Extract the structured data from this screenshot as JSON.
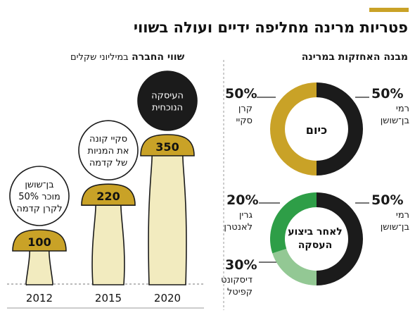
{
  "header": {
    "title": "פטריות מרינה מחליפה ידיים ועולה בשווי"
  },
  "sections": {
    "holdings_title": "מבנה האחזקות במרינה",
    "value_title_bold": "שווי החברה",
    "value_title_sub": "במיליוני שקלים"
  },
  "colors": {
    "accent": "#c9a227",
    "dark": "#1b1b1b",
    "gold": "#c9a227",
    "green": "#2e9e47",
    "light_green": "#93c894",
    "stem": "#f2ebbf"
  },
  "chart_data": [
    {
      "type": "pie",
      "title": "כיום",
      "slices": [
        {
          "name": "רמי בן־שושן",
          "percent": 50,
          "label_value": "50%",
          "label_line1": "רמי",
          "label_line2": "בן־שושן",
          "color": "#1b1b1b"
        },
        {
          "name": "קרן סקיי",
          "percent": 50,
          "label_value": "50%",
          "label_line1": "קרן",
          "label_line2": "סקיי",
          "color": "#c9a227"
        }
      ]
    },
    {
      "type": "pie",
      "title": "לאחר ביצוע העסקה",
      "title_line1": "לאחר ביצוע",
      "title_line2": "העסקה",
      "slices": [
        {
          "name": "רמי בן־שושן",
          "percent": 50,
          "label_value": "50%",
          "label_line1": "רמי",
          "label_line2": "בן־שושן",
          "color": "#1b1b1b"
        },
        {
          "name": "גרין לאנטרן",
          "percent": 20,
          "label_value": "20%",
          "label_line1": "גרין",
          "label_line2": "לאנטרן",
          "color": "#93c894"
        },
        {
          "name": "דיסקונט קפיטל",
          "percent": 30,
          "label_value": "30%",
          "label_line1": "דיסקונט",
          "label_line2": "קפיטל",
          "color": "#2e9e47"
        }
      ]
    },
    {
      "type": "bar",
      "title": "שווי החברה במיליוני שקלים",
      "categories": [
        "2012",
        "2015",
        "2020"
      ],
      "values": [
        100,
        220,
        350
      ],
      "value_labels": [
        "100",
        "220",
        "350"
      ],
      "annotations": [
        {
          "category": "2012",
          "lines": [
            "בן־שושן",
            "מוכר 50%",
            "לקרן קדמה"
          ],
          "style": "white"
        },
        {
          "category": "2015",
          "lines": [
            "סקיי קונה",
            "את המניות",
            "של קדמה"
          ],
          "style": "white"
        },
        {
          "category": "2020",
          "lines": [
            "העיסקה",
            "הנוכחית"
          ],
          "style": "dark"
        }
      ]
    }
  ]
}
